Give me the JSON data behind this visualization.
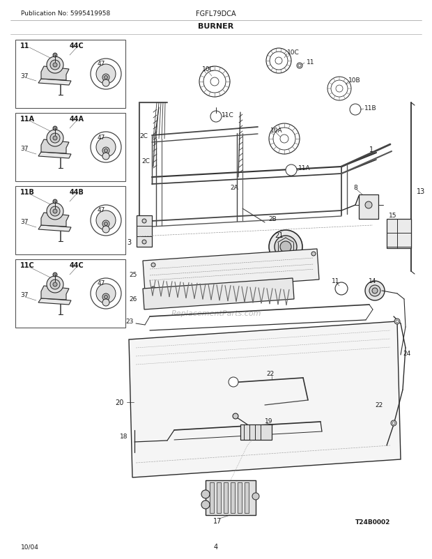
{
  "title": "BURNER",
  "pub_no": "Publication No: 5995419958",
  "model": "FGFL79DCA",
  "date": "10/04",
  "page": "4",
  "diagram_code": "T24B0002",
  "watermark": "ReplacementParts.com",
  "bg_color": "#ffffff",
  "line_color": "#2a2a2a",
  "text_color": "#1a1a1a",
  "fig_width": 6.2,
  "fig_height": 8.03,
  "dpi": 100
}
